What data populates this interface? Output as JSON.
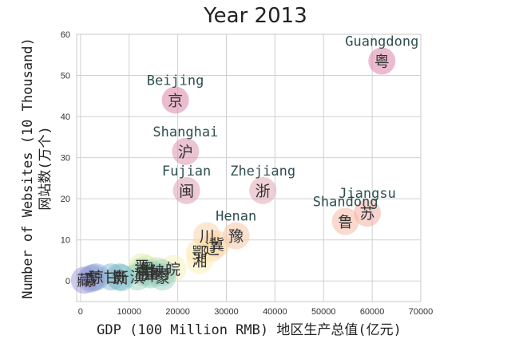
{
  "chart_data": {
    "type": "scatter",
    "title": "Year 2013",
    "xlabel": "GDP (100 Million RMB) 地区生产总值(亿元)",
    "ylabel_lines": [
      "Number of Websites (10 Thousand)",
      "网站数(万个)"
    ],
    "xlim": [
      -800,
      70000
    ],
    "ylim": [
      -5,
      60
    ],
    "xticks": [
      0,
      10000,
      20000,
      30000,
      40000,
      50000,
      60000,
      70000
    ],
    "yticks": [
      0,
      10,
      20,
      30,
      40,
      50,
      60
    ],
    "grid": true,
    "points": [
      {
        "abbr": "粤",
        "name": "Guangdong",
        "x": 62000,
        "y": 53.5,
        "color": "#d87aa0"
      },
      {
        "abbr": "京",
        "name": "Beijing",
        "x": 19500,
        "y": 44,
        "color": "#d87aa0"
      },
      {
        "abbr": "沪",
        "name": "Shanghai",
        "x": 21600,
        "y": 31.5,
        "color": "#d98aa8"
      },
      {
        "abbr": "闽",
        "name": "Fujian",
        "x": 21800,
        "y": 22,
        "color": "#dc95ac"
      },
      {
        "abbr": "浙",
        "name": "Zhejiang",
        "x": 37500,
        "y": 22,
        "color": "#e0a0ae"
      },
      {
        "abbr": "苏",
        "name": "Jiangsu",
        "x": 59000,
        "y": 16.5,
        "color": "#f2a9a0"
      },
      {
        "abbr": "鲁",
        "name": "Shandong",
        "x": 54500,
        "y": 14.5,
        "color": "#f6b3a0"
      },
      {
        "abbr": "豫",
        "name": "Henan",
        "x": 32000,
        "y": 11,
        "color": "#f8c0a0"
      },
      {
        "abbr": "川",
        "name": "",
        "x": 26000,
        "y": 11,
        "color": "#fad0a4"
      },
      {
        "abbr": "冀",
        "name": "",
        "x": 28000,
        "y": 9,
        "color": "#fad4a6"
      },
      {
        "abbr": "辽",
        "name": "",
        "x": 27000,
        "y": 8,
        "color": "#fbd8a8"
      },
      {
        "abbr": "鄂",
        "name": "",
        "x": 24500,
        "y": 7,
        "color": "#fce4ac"
      },
      {
        "abbr": "湘",
        "name": "",
        "x": 24500,
        "y": 5,
        "color": "#fdeeb4"
      },
      {
        "abbr": "皖",
        "name": "",
        "x": 19000,
        "y": 3,
        "color": "#f5f0b8"
      },
      {
        "abbr": "晋",
        "name": "",
        "x": 12600,
        "y": 3.5,
        "color": "#e4f0b4"
      },
      {
        "abbr": "黑",
        "name": "",
        "x": 13700,
        "y": 3,
        "color": "#d8ecb4"
      },
      {
        "abbr": "渝",
        "name": "",
        "x": 12600,
        "y": 2.5,
        "color": "#cfe8b4"
      },
      {
        "abbr": "陕",
        "name": "",
        "x": 15800,
        "y": 2.5,
        "color": "#c4e4b6"
      },
      {
        "abbr": "桂",
        "name": "",
        "x": 14400,
        "y": 2,
        "color": "#bce0b8"
      },
      {
        "abbr": "吉",
        "name": "",
        "x": 13000,
        "y": 2,
        "color": "#b2dcba"
      },
      {
        "abbr": "内",
        "name": "",
        "x": 16800,
        "y": 2,
        "color": "#a8d8bc"
      },
      {
        "abbr": "滇",
        "name": "",
        "x": 11700,
        "y": 1,
        "color": "#a0d4c0"
      },
      {
        "abbr": "蒙",
        "name": "",
        "x": 16900,
        "y": 1,
        "color": "#98d0c2"
      },
      {
        "abbr": "新",
        "name": "",
        "x": 8400,
        "y": 0.8,
        "color": "#8ac8c8"
      },
      {
        "abbr": "贵",
        "name": "",
        "x": 8000,
        "y": 1,
        "color": "#80c0cc"
      },
      {
        "abbr": "津",
        "name": "",
        "x": 14400,
        "y": 1.5,
        "color": "#94cec4"
      },
      {
        "abbr": "甘",
        "name": "",
        "x": 6300,
        "y": 1,
        "color": "#88b8d0"
      },
      {
        "abbr": "琼",
        "name": "",
        "x": 3200,
        "y": 1,
        "color": "#8cb0d4"
      },
      {
        "abbr": "宁",
        "name": "",
        "x": 2600,
        "y": 0.8,
        "color": "#90a8d6"
      },
      {
        "abbr": "青",
        "name": "",
        "x": 2100,
        "y": 0.5,
        "color": "#94a0d8"
      },
      {
        "abbr": "藏",
        "name": "",
        "x": 800,
        "y": 0.2,
        "color": "#9c98d8"
      }
    ]
  }
}
